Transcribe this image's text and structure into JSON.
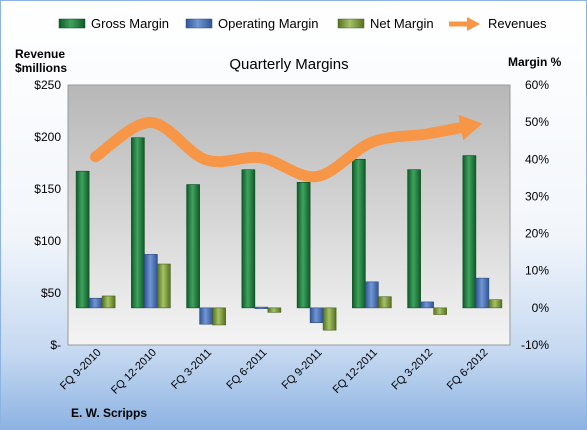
{
  "chart_data": {
    "type": "bar",
    "title": "Quarterly Margins",
    "footer": "E. W. Scripps",
    "left_axis": {
      "label_line1": "Revenue",
      "label_line2": "$millions",
      "ticks": [
        "$-",
        "$50",
        "$100",
        "$150",
        "$200",
        "$250"
      ],
      "ylim": [
        0,
        250
      ]
    },
    "right_axis": {
      "label": "Margin %",
      "ticks": [
        "-10%",
        "0%",
        "10%",
        "20%",
        "30%",
        "40%",
        "50%",
        "60%"
      ],
      "ylim": [
        -10,
        60
      ]
    },
    "categories": [
      "FQ 9-2010",
      "FQ 12-2010",
      "FQ 3-2011",
      "FQ 6-2011",
      "FQ 9-2011",
      "FQ 12-2011",
      "FQ 3-2012",
      "FQ 6-2012"
    ],
    "series": [
      {
        "name": "Gross Margin",
        "axis": "right",
        "kind": "bar",
        "color": "#1e7b3c",
        "values": [
          36.8,
          45.8,
          33.2,
          37.2,
          33.8,
          40.0,
          37.2,
          41.0
        ]
      },
      {
        "name": "Operating Margin",
        "axis": "right",
        "kind": "bar",
        "color": "#4472c4",
        "values": [
          2.6,
          14.4,
          -4.4,
          0.2,
          -4.0,
          7.0,
          1.6,
          8.0
        ]
      },
      {
        "name": "Net Margin",
        "axis": "right",
        "kind": "bar",
        "color": "#76923c",
        "values": [
          3.2,
          11.8,
          -4.6,
          -1.2,
          -6.0,
          3.0,
          -1.8,
          2.2
        ]
      },
      {
        "name": "Revenues",
        "axis": "left",
        "kind": "line",
        "color": "#f79646",
        "values": [
          181,
          214,
          178,
          180,
          162,
          195,
          203,
          213
        ]
      }
    ],
    "legend_position": "top",
    "grid": false
  }
}
